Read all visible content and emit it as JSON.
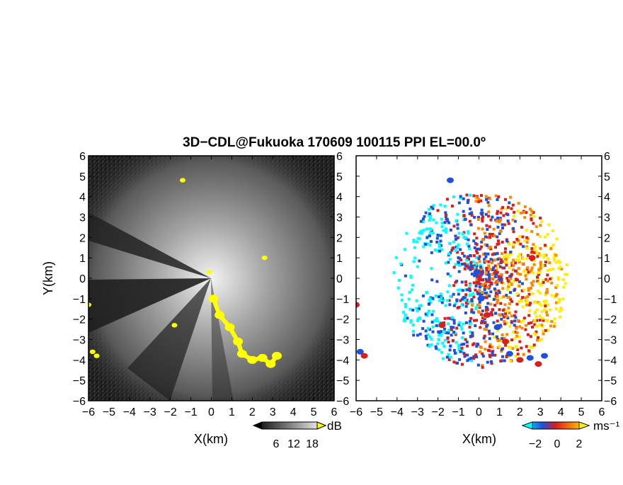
{
  "chart_data": {
    "title": "3D−CDL@Fukuoka 170609 100115 PPI EL=00.0º",
    "panels": [
      {
        "id": "intensity",
        "type": "heatmap",
        "xlabel": "X(km)",
        "ylabel": "Y(km)",
        "xlim": [
          -6,
          6
        ],
        "ylim": [
          -6,
          6
        ],
        "x_ticks": [
          "−6",
          "−5",
          "−4",
          "−3",
          "−2",
          "−1",
          "0",
          "1",
          "2",
          "3",
          "4",
          "5",
          "6"
        ],
        "y_ticks": [
          "6",
          "5",
          "4",
          "3",
          "2",
          "1",
          "0",
          "−1",
          "−2",
          "−3",
          "−4",
          "−5",
          "−6"
        ],
        "colorbar": {
          "unit": "dB",
          "tick_labels": [
            "6",
            "12",
            "18"
          ],
          "range": [
            0,
            20
          ],
          "colors": [
            "#000000",
            "#ffffff",
            "#ffff00"
          ]
        },
        "highlight_color": "#ffff00",
        "highlight_points": [
          [
            -6,
            -1.3
          ],
          [
            -5.8,
            -3.6
          ],
          [
            -5.6,
            -3.8
          ],
          [
            -1.4,
            4.8
          ],
          [
            2.6,
            1.0
          ],
          [
            0.1,
            -1.0
          ],
          [
            0.4,
            -1.8
          ],
          [
            0.9,
            -2.4
          ],
          [
            1.3,
            -3.1
          ],
          [
            1.5,
            -3.7
          ],
          [
            2.0,
            -4.0
          ],
          [
            2.5,
            -3.9
          ],
          [
            2.9,
            -4.2
          ],
          [
            3.2,
            -3.8
          ],
          [
            -1.8,
            -2.3
          ],
          [
            -0.1,
            0.3
          ]
        ]
      },
      {
        "id": "velocity",
        "type": "heatmap",
        "xlabel": "X(km)",
        "xlim": [
          -6,
          6
        ],
        "ylim": [
          -6,
          6
        ],
        "x_ticks": [
          "−6",
          "−5",
          "−4",
          "−3",
          "−2",
          "−1",
          "0",
          "1",
          "2",
          "3",
          "4",
          "5",
          "6"
        ],
        "y_ticks": [
          "6",
          "5",
          "4",
          "3",
          "2",
          "1",
          "0",
          "−1",
          "−2",
          "−3",
          "−4",
          "−5",
          "−6"
        ],
        "colorbar": {
          "unit": "ms⁻¹",
          "tick_labels": [
            "−2",
            "0",
            "2"
          ],
          "range": [
            -3,
            5
          ],
          "colors": [
            "#00ffff",
            "#1e50dc",
            "#d81e1e",
            "#ff8800",
            "#ffee00"
          ]
        }
      }
    ]
  }
}
